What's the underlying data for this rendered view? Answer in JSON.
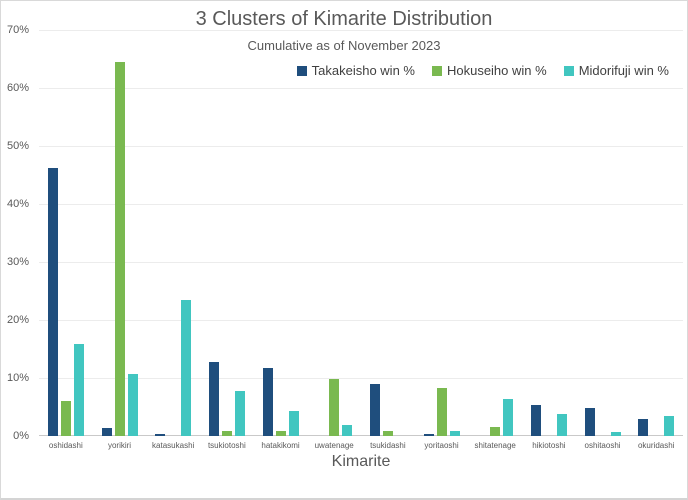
{
  "chart_data": {
    "type": "bar",
    "title": "3 Clusters of Kimarite Distribution",
    "subtitle": "Cumulative as of November 2023",
    "xlabel": "Kimarite",
    "ylabel": "",
    "ylim": [
      0,
      70
    ],
    "ytick_step": 10,
    "yticks": [
      "0%",
      "10%",
      "20%",
      "30%",
      "40%",
      "50%",
      "60%",
      "70%"
    ],
    "grid": true,
    "legend_position": "top-right",
    "categories": [
      "oshidashi",
      "yorikiri",
      "katasukashi",
      "tsukiotoshi",
      "hatakikomi",
      "uwatenage",
      "tsukidashi",
      "yoritaoshi",
      "shitatenage",
      "hikiotoshi",
      "oshitaoshi",
      "okuridashi"
    ],
    "series": [
      {
        "name": "Takakeisho win %",
        "color": "#1f4e7d",
        "values": [
          46.2,
          1.3,
          0.4,
          12.8,
          11.8,
          0,
          9.0,
          0.4,
          0,
          5.3,
          4.8,
          2.9
        ]
      },
      {
        "name": "Hokuseiho win %",
        "color": "#7ab950",
        "values": [
          6.0,
          64.4,
          0,
          0.8,
          0.9,
          9.9,
          0.9,
          8.3,
          1.5,
          0,
          0,
          0
        ]
      },
      {
        "name": "Midorifuji win %",
        "color": "#41c6c0",
        "values": [
          15.8,
          10.7,
          23.5,
          7.7,
          4.3,
          1.9,
          0,
          0.9,
          6.4,
          3.8,
          0.7,
          3.4
        ]
      }
    ]
  },
  "colors": {
    "text": "#595959",
    "legend_text": "#404040",
    "gridline": "#ececec",
    "axis_line": "#c9c9c9",
    "background": "#ffffff",
    "border": "#d9d9d9"
  }
}
